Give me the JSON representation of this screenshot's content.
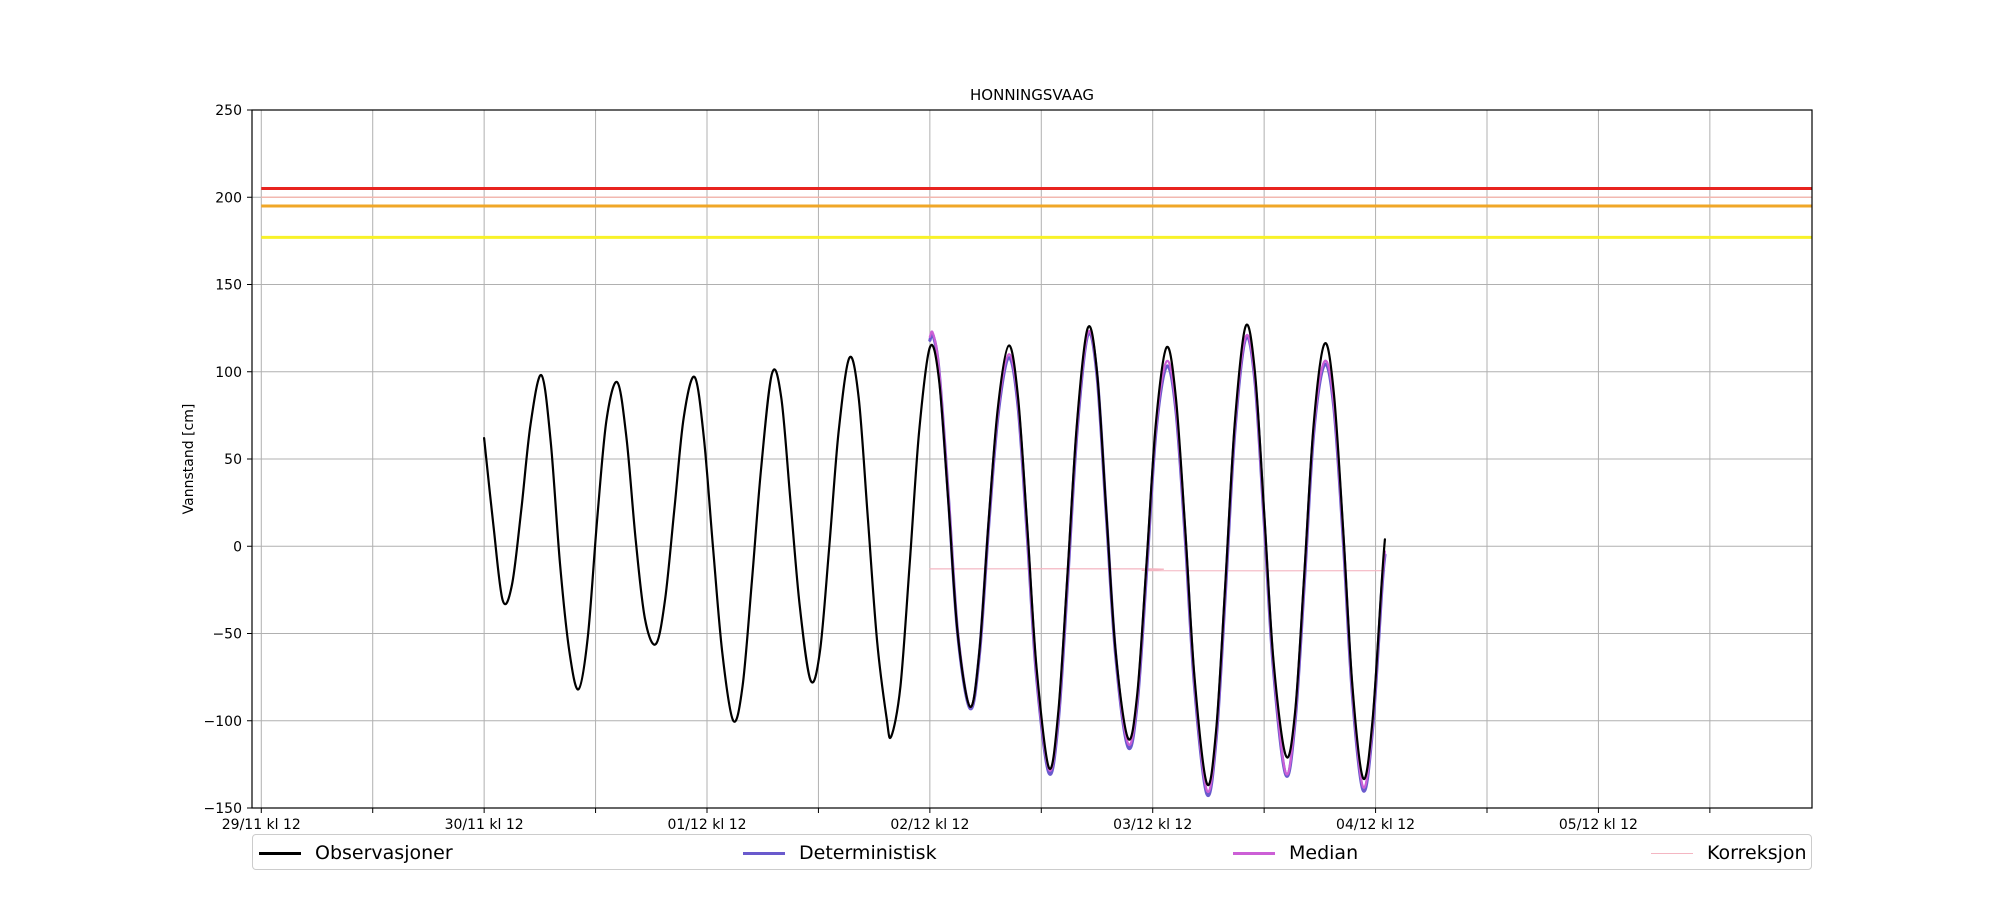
{
  "chart_data": {
    "type": "line",
    "title": "HONNINGSVAAG",
    "ylabel": "Vannstand [cm]",
    "xlabel": "",
    "ylim": [
      -150,
      250
    ],
    "xlim": [
      "2024-11-29T11:00",
      "2024-12-06T11:00"
    ],
    "yticks": [
      -150,
      -100,
      -50,
      0,
      50,
      100,
      150,
      200,
      250
    ],
    "xticks": [
      {
        "t": "2024-11-29T12:00",
        "label": "29/11 kl 12"
      },
      {
        "t": "2024-11-30T00:00",
        "label": ""
      },
      {
        "t": "2024-11-30T12:00",
        "label": "30/11 kl 12"
      },
      {
        "t": "2024-12-01T00:00",
        "label": ""
      },
      {
        "t": "2024-12-01T12:00",
        "label": "01/12 kl 12"
      },
      {
        "t": "2024-12-02T00:00",
        "label": ""
      },
      {
        "t": "2024-12-02T12:00",
        "label": "02/12 kl 12"
      },
      {
        "t": "2024-12-03T00:00",
        "label": ""
      },
      {
        "t": "2024-12-03T12:00",
        "label": "03/12 kl 12"
      },
      {
        "t": "2024-12-04T00:00",
        "label": ""
      },
      {
        "t": "2024-12-04T12:00",
        "label": "04/12 kl 12"
      },
      {
        "t": "2024-12-05T00:00",
        "label": ""
      },
      {
        "t": "2024-12-05T12:00",
        "label": "05/12 kl 12"
      },
      {
        "t": "2024-12-06T00:00",
        "label": ""
      }
    ],
    "grid": true,
    "legend_placement": "bottom",
    "threshold_lines": [
      {
        "value": 205,
        "color": "#e8231f"
      },
      {
        "value": 200,
        "color": "#f2b8b0"
      },
      {
        "value": 195,
        "color": "#f0a727"
      },
      {
        "value": 177,
        "color": "#f8f229"
      }
    ],
    "series": [
      {
        "name": "Observasjoner",
        "color": "#000000",
        "points": [
          [
            "2024-11-30T12:00",
            62
          ],
          [
            "2024-11-30T13:00",
            12
          ],
          [
            "2024-11-30T14:00",
            -31
          ],
          [
            "2024-11-30T15:00",
            -22
          ],
          [
            "2024-11-30T16:00",
            21
          ],
          [
            "2024-11-30T17:00",
            70
          ],
          [
            "2024-11-30T18:10",
            98
          ],
          [
            "2024-11-30T19:10",
            60
          ],
          [
            "2024-11-30T20:10",
            -10
          ],
          [
            "2024-11-30T21:10",
            -60
          ],
          [
            "2024-11-30T22:10",
            -82
          ],
          [
            "2024-11-30T23:10",
            -52
          ],
          [
            "2024-12-01T00:10",
            15
          ],
          [
            "2024-12-01T01:10",
            72
          ],
          [
            "2024-12-01T02:20",
            94
          ],
          [
            "2024-12-01T03:20",
            62
          ],
          [
            "2024-12-01T04:20",
            3
          ],
          [
            "2024-12-01T05:20",
            -42
          ],
          [
            "2024-12-01T06:30",
            -56
          ],
          [
            "2024-12-01T07:30",
            -30
          ],
          [
            "2024-12-01T08:30",
            22
          ],
          [
            "2024-12-01T09:30",
            74
          ],
          [
            "2024-12-01T10:40",
            97
          ],
          [
            "2024-12-01T11:40",
            62
          ],
          [
            "2024-12-01T12:40",
            -2
          ],
          [
            "2024-12-01T13:40",
            -62
          ],
          [
            "2024-12-01T14:50",
            -100
          ],
          [
            "2024-12-01T15:50",
            -80
          ],
          [
            "2024-12-01T16:50",
            -20
          ],
          [
            "2024-12-01T17:50",
            45
          ],
          [
            "2024-12-01T19:00",
            99
          ],
          [
            "2024-12-01T20:00",
            85
          ],
          [
            "2024-12-01T21:00",
            25
          ],
          [
            "2024-12-01T22:00",
            -35
          ],
          [
            "2024-12-01T23:10",
            -77
          ],
          [
            "2024-12-02T00:10",
            -60
          ],
          [
            "2024-12-02T01:10",
            0
          ],
          [
            "2024-12-02T02:10",
            65
          ],
          [
            "2024-12-02T03:20",
            108
          ],
          [
            "2024-12-02T04:20",
            85
          ],
          [
            "2024-12-02T05:20",
            15
          ],
          [
            "2024-12-02T06:20",
            -55
          ],
          [
            "2024-12-02T07:20",
            -98
          ],
          [
            "2024-12-02T07:50",
            -109
          ],
          [
            "2024-12-02T08:50",
            -80
          ],
          [
            "2024-12-02T09:50",
            -10
          ],
          [
            "2024-12-02T10:50",
            65
          ],
          [
            "2024-12-02T12:00",
            114
          ],
          [
            "2024-12-02T13:00",
            95
          ],
          [
            "2024-12-02T14:00",
            25
          ],
          [
            "2024-12-02T15:00",
            -50
          ],
          [
            "2024-12-02T16:20",
            -92
          ],
          [
            "2024-12-02T17:20",
            -60
          ],
          [
            "2024-12-02T18:20",
            15
          ],
          [
            "2024-12-02T19:20",
            80
          ],
          [
            "2024-12-02T20:30",
            115
          ],
          [
            "2024-12-02T21:30",
            85
          ],
          [
            "2024-12-02T22:30",
            10
          ],
          [
            "2024-12-02T23:30",
            -70
          ],
          [
            "2024-12-03T00:50",
            -127
          ],
          [
            "2024-12-03T01:50",
            -95
          ],
          [
            "2024-12-03T02:50",
            -15
          ],
          [
            "2024-12-03T03:50",
            70
          ],
          [
            "2024-12-03T05:00",
            125
          ],
          [
            "2024-12-03T06:00",
            100
          ],
          [
            "2024-12-03T07:00",
            20
          ],
          [
            "2024-12-03T08:00",
            -60
          ],
          [
            "2024-12-03T09:20",
            -110
          ],
          [
            "2024-12-03T10:20",
            -85
          ],
          [
            "2024-12-03T11:20",
            -10
          ],
          [
            "2024-12-03T12:20",
            70
          ],
          [
            "2024-12-03T13:30",
            114
          ],
          [
            "2024-12-03T14:30",
            85
          ],
          [
            "2024-12-03T15:30",
            10
          ],
          [
            "2024-12-03T16:30",
            -75
          ],
          [
            "2024-12-03T17:50",
            -136
          ],
          [
            "2024-12-03T18:50",
            -105
          ],
          [
            "2024-12-03T19:50",
            -20
          ],
          [
            "2024-12-03T20:50",
            70
          ],
          [
            "2024-12-03T22:00",
            126
          ],
          [
            "2024-12-03T23:00",
            100
          ],
          [
            "2024-12-04T00:00",
            20
          ],
          [
            "2024-12-04T01:00",
            -65
          ],
          [
            "2024-12-04T02:20",
            -120
          ],
          [
            "2024-12-04T03:20",
            -95
          ],
          [
            "2024-12-04T04:20",
            -15
          ],
          [
            "2024-12-04T05:20",
            70
          ],
          [
            "2024-12-04T06:30",
            116
          ],
          [
            "2024-12-04T07:30",
            88
          ],
          [
            "2024-12-04T08:30",
            10
          ],
          [
            "2024-12-04T09:30",
            -80
          ],
          [
            "2024-12-04T10:40",
            -133
          ],
          [
            "2024-12-04T11:40",
            -100
          ],
          [
            "2024-12-04T12:40",
            -20
          ],
          [
            "2024-12-04T13:00",
            4
          ]
        ]
      },
      {
        "name": "Deterministisk",
        "color": "#6a5acd",
        "points": [
          [
            "2024-12-02T12:00",
            118
          ],
          [
            "2024-12-02T12:20",
            121
          ],
          [
            "2024-12-02T13:00",
            100
          ],
          [
            "2024-12-02T14:00",
            28
          ],
          [
            "2024-12-02T15:00",
            -50
          ],
          [
            "2024-12-02T16:20",
            -93
          ],
          [
            "2024-12-02T17:20",
            -62
          ],
          [
            "2024-12-02T18:20",
            12
          ],
          [
            "2024-12-02T19:20",
            75
          ],
          [
            "2024-12-02T20:30",
            108
          ],
          [
            "2024-12-02T21:30",
            80
          ],
          [
            "2024-12-02T22:30",
            5
          ],
          [
            "2024-12-02T23:30",
            -75
          ],
          [
            "2024-12-03T00:50",
            -130
          ],
          [
            "2024-12-03T01:50",
            -100
          ],
          [
            "2024-12-03T02:50",
            -20
          ],
          [
            "2024-12-03T03:50",
            65
          ],
          [
            "2024-12-03T05:00",
            121
          ],
          [
            "2024-12-03T06:00",
            98
          ],
          [
            "2024-12-03T07:00",
            18
          ],
          [
            "2024-12-03T08:00",
            -62
          ],
          [
            "2024-12-03T09:20",
            -115
          ],
          [
            "2024-12-03T10:20",
            -90
          ],
          [
            "2024-12-03T11:20",
            -15
          ],
          [
            "2024-12-03T12:20",
            65
          ],
          [
            "2024-12-03T13:30",
            103
          ],
          [
            "2024-12-03T14:30",
            78
          ],
          [
            "2024-12-03T15:30",
            5
          ],
          [
            "2024-12-03T16:30",
            -80
          ],
          [
            "2024-12-03T17:50",
            -142
          ],
          [
            "2024-12-03T18:50",
            -110
          ],
          [
            "2024-12-03T19:50",
            -25
          ],
          [
            "2024-12-03T20:50",
            65
          ],
          [
            "2024-12-03T22:00",
            119
          ],
          [
            "2024-12-03T23:00",
            95
          ],
          [
            "2024-12-04T00:00",
            15
          ],
          [
            "2024-12-04T01:00",
            -70
          ],
          [
            "2024-12-04T02:20",
            -131
          ],
          [
            "2024-12-04T03:20",
            -100
          ],
          [
            "2024-12-04T04:20",
            -20
          ],
          [
            "2024-12-04T05:20",
            65
          ],
          [
            "2024-12-04T06:30",
            104
          ],
          [
            "2024-12-04T07:30",
            80
          ],
          [
            "2024-12-04T08:30",
            5
          ],
          [
            "2024-12-04T09:30",
            -85
          ],
          [
            "2024-12-04T10:40",
            -140
          ],
          [
            "2024-12-04T11:40",
            -105
          ],
          [
            "2024-12-04T12:40",
            -25
          ],
          [
            "2024-12-04T13:00",
            -5
          ]
        ]
      },
      {
        "name": "Median",
        "color": "#cc5fd6",
        "points": [
          [
            "2024-12-02T12:00",
            120
          ],
          [
            "2024-12-02T12:20",
            122
          ],
          [
            "2024-12-02T13:00",
            101
          ],
          [
            "2024-12-02T14:00",
            29
          ],
          [
            "2024-12-02T15:00",
            -49
          ],
          [
            "2024-12-02T16:20",
            -92
          ],
          [
            "2024-12-02T17:20",
            -61
          ],
          [
            "2024-12-02T18:20",
            13
          ],
          [
            "2024-12-02T19:20",
            77
          ],
          [
            "2024-12-02T20:30",
            110
          ],
          [
            "2024-12-02T21:30",
            82
          ],
          [
            "2024-12-02T22:30",
            6
          ],
          [
            "2024-12-02T23:30",
            -74
          ],
          [
            "2024-12-03T00:50",
            -128
          ],
          [
            "2024-12-03T01:50",
            -98
          ],
          [
            "2024-12-03T02:50",
            -18
          ],
          [
            "2024-12-03T03:50",
            67
          ],
          [
            "2024-12-03T05:00",
            122
          ],
          [
            "2024-12-03T06:00",
            99
          ],
          [
            "2024-12-03T07:00",
            19
          ],
          [
            "2024-12-03T08:00",
            -61
          ],
          [
            "2024-12-03T09:20",
            -113
          ],
          [
            "2024-12-03T10:20",
            -88
          ],
          [
            "2024-12-03T11:20",
            -13
          ],
          [
            "2024-12-03T12:20",
            67
          ],
          [
            "2024-12-03T13:30",
            106
          ],
          [
            "2024-12-03T14:30",
            80
          ],
          [
            "2024-12-03T15:30",
            7
          ],
          [
            "2024-12-03T16:30",
            -78
          ],
          [
            "2024-12-03T17:50",
            -140
          ],
          [
            "2024-12-03T18:50",
            -108
          ],
          [
            "2024-12-03T19:50",
            -23
          ],
          [
            "2024-12-03T20:50",
            67
          ],
          [
            "2024-12-03T22:00",
            120
          ],
          [
            "2024-12-03T23:00",
            96
          ],
          [
            "2024-12-04T00:00",
            16
          ],
          [
            "2024-12-04T01:00",
            -68
          ],
          [
            "2024-12-04T02:20",
            -130
          ],
          [
            "2024-12-04T03:20",
            -98
          ],
          [
            "2024-12-04T04:20",
            -18
          ],
          [
            "2024-12-04T05:20",
            67
          ],
          [
            "2024-12-04T06:30",
            106
          ],
          [
            "2024-12-04T07:30",
            82
          ],
          [
            "2024-12-04T08:30",
            7
          ],
          [
            "2024-12-04T09:30",
            -83
          ],
          [
            "2024-12-04T10:40",
            -138
          ],
          [
            "2024-12-04T11:40",
            -103
          ],
          [
            "2024-12-04T12:40",
            -23
          ],
          [
            "2024-12-04T13:00",
            -3
          ]
        ]
      },
      {
        "name": "Korreksjon",
        "color": "#f4b6c2",
        "points": [
          [
            "2024-12-02T12:00",
            -13
          ],
          [
            "2024-12-03T12:00",
            -13
          ],
          [
            "2024-12-03T12:05",
            -14
          ],
          [
            "2024-12-04T13:00",
            -14
          ]
        ]
      }
    ]
  }
}
